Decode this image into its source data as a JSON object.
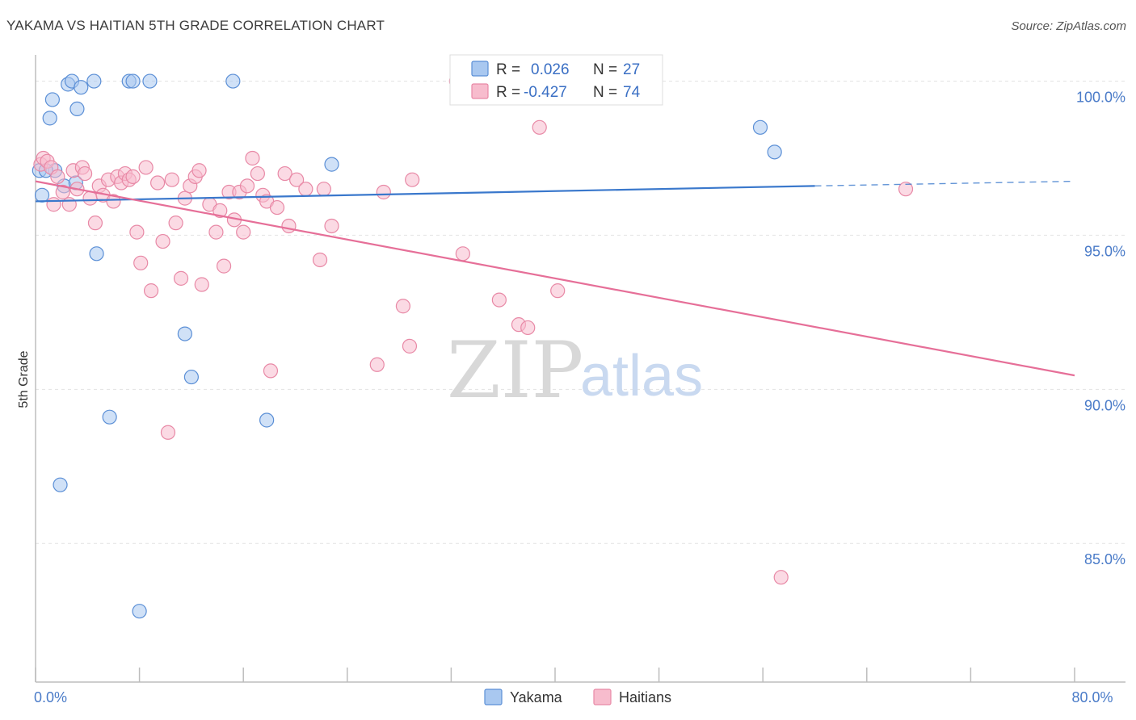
{
  "header": {
    "title": "YAKAMA VS HAITIAN 5TH GRADE CORRELATION CHART",
    "source": "Source: ZipAtlas.com"
  },
  "watermark": {
    "zip": "ZIP",
    "atlas": "atlas"
  },
  "legend": {
    "r_label": "R =",
    "n_label": "N =",
    "rows": [
      {
        "r": "0.026",
        "n": "27",
        "color": "#a9c8f0",
        "border": "#5b8fd6"
      },
      {
        "r": "-0.427",
        "n": "74",
        "color": "#f7bccd",
        "border": "#e889a6"
      }
    ]
  },
  "chart_data": {
    "type": "scatter",
    "title": "YAKAMA VS HAITIAN 5TH GRADE CORRELATION CHART",
    "xlabel": "",
    "ylabel": "5th Grade",
    "xlim": [
      0,
      80
    ],
    "ylim": [
      80.5,
      100.8
    ],
    "y_ticks": [
      {
        "value": 100,
        "label": "100.0%"
      },
      {
        "value": 95,
        "label": "95.0%"
      },
      {
        "value": 90,
        "label": "90.0%"
      },
      {
        "value": 85,
        "label": "85.0%"
      }
    ],
    "x_ticks": [
      {
        "value": 0,
        "label": "0.0%"
      },
      {
        "value": 80,
        "label": "80.0%"
      }
    ],
    "x_minor_ticks": [
      0,
      8,
      16,
      24,
      32,
      40,
      48,
      56,
      64,
      72,
      80
    ],
    "grid": true,
    "legend_position": "top-center",
    "series": [
      {
        "name": "Yakama",
        "color": "#a9c8f0",
        "stroke": "#5b8fd6",
        "line_color": "#3a78cc",
        "trend": {
          "x0": 0,
          "y0": 96.1,
          "x1": 60,
          "y1": 96.6,
          "dash_to_x": 80,
          "dash_to_y": 96.75
        },
        "points": [
          [
            0.3,
            97.1
          ],
          [
            0.5,
            96.3
          ],
          [
            1.1,
            98.8
          ],
          [
            1.3,
            99.4
          ],
          [
            1.5,
            97.1
          ],
          [
            1.9,
            86.9
          ],
          [
            2.2,
            96.6
          ],
          [
            2.5,
            99.9
          ],
          [
            2.8,
            100.0
          ],
          [
            3.1,
            96.7
          ],
          [
            3.2,
            99.1
          ],
          [
            3.5,
            99.8
          ],
          [
            4.5,
            100.0
          ],
          [
            4.7,
            94.4
          ],
          [
            5.7,
            89.1
          ],
          [
            7.2,
            100.0
          ],
          [
            7.5,
            100.0
          ],
          [
            8.0,
            82.8
          ],
          [
            8.8,
            100.0
          ],
          [
            11.5,
            91.8
          ],
          [
            12.0,
            90.4
          ],
          [
            15.2,
            100.0
          ],
          [
            17.8,
            89.0
          ],
          [
            22.8,
            97.3
          ],
          [
            55.8,
            98.5
          ],
          [
            56.9,
            97.7
          ],
          [
            0.8,
            97.1
          ]
        ]
      },
      {
        "name": "Haitians",
        "color": "#f7bccd",
        "stroke": "#e889a6",
        "line_color": "#e66f98",
        "trend": {
          "x0": 0,
          "y0": 96.75,
          "x1": 80,
          "y1": 90.45
        },
        "points": [
          [
            0.4,
            97.3
          ],
          [
            0.6,
            97.5
          ],
          [
            0.9,
            97.4
          ],
          [
            1.2,
            97.2
          ],
          [
            1.4,
            96.0
          ],
          [
            1.7,
            96.9
          ],
          [
            2.1,
            96.4
          ],
          [
            2.6,
            96.0
          ],
          [
            2.9,
            97.1
          ],
          [
            3.2,
            96.5
          ],
          [
            3.6,
            97.2
          ],
          [
            3.8,
            97.0
          ],
          [
            4.2,
            96.2
          ],
          [
            4.6,
            95.4
          ],
          [
            4.9,
            96.6
          ],
          [
            5.2,
            96.3
          ],
          [
            5.6,
            96.8
          ],
          [
            6.0,
            96.1
          ],
          [
            6.3,
            96.9
          ],
          [
            6.6,
            96.7
          ],
          [
            6.9,
            97.0
          ],
          [
            7.2,
            96.8
          ],
          [
            7.5,
            96.9
          ],
          [
            7.8,
            95.1
          ],
          [
            8.1,
            94.1
          ],
          [
            8.5,
            97.2
          ],
          [
            8.9,
            93.2
          ],
          [
            9.4,
            96.7
          ],
          [
            9.8,
            94.8
          ],
          [
            10.2,
            88.6
          ],
          [
            10.5,
            96.8
          ],
          [
            10.8,
            95.4
          ],
          [
            11.2,
            93.6
          ],
          [
            11.5,
            96.2
          ],
          [
            11.9,
            96.6
          ],
          [
            12.3,
            96.9
          ],
          [
            12.6,
            97.1
          ],
          [
            12.8,
            93.4
          ],
          [
            13.4,
            96.0
          ],
          [
            13.9,
            95.1
          ],
          [
            14.2,
            95.8
          ],
          [
            14.5,
            94.0
          ],
          [
            14.9,
            96.4
          ],
          [
            15.3,
            95.5
          ],
          [
            15.7,
            96.4
          ],
          [
            16.0,
            95.1
          ],
          [
            16.3,
            96.6
          ],
          [
            16.7,
            97.5
          ],
          [
            17.1,
            97.0
          ],
          [
            17.5,
            96.3
          ],
          [
            17.8,
            96.1
          ],
          [
            18.1,
            90.6
          ],
          [
            18.6,
            95.9
          ],
          [
            19.2,
            97.0
          ],
          [
            19.5,
            95.3
          ],
          [
            20.1,
            96.8
          ],
          [
            20.8,
            96.5
          ],
          [
            21.9,
            94.2
          ],
          [
            22.2,
            96.5
          ],
          [
            22.8,
            95.3
          ],
          [
            26.3,
            90.8
          ],
          [
            26.8,
            96.4
          ],
          [
            28.3,
            92.7
          ],
          [
            28.8,
            91.4
          ],
          [
            29.0,
            96.8
          ],
          [
            32.4,
            100.0
          ],
          [
            32.9,
            94.4
          ],
          [
            35.7,
            92.9
          ],
          [
            37.2,
            92.1
          ],
          [
            37.9,
            92.0
          ],
          [
            38.8,
            98.5
          ],
          [
            40.2,
            93.2
          ],
          [
            57.4,
            83.9
          ],
          [
            67.0,
            96.5
          ]
        ]
      }
    ]
  },
  "bottom_legend": [
    {
      "label": "Yakama",
      "color": "#a9c8f0",
      "border": "#5b8fd6"
    },
    {
      "label": "Haitians",
      "color": "#f7bccd",
      "border": "#e889a6"
    }
  ]
}
